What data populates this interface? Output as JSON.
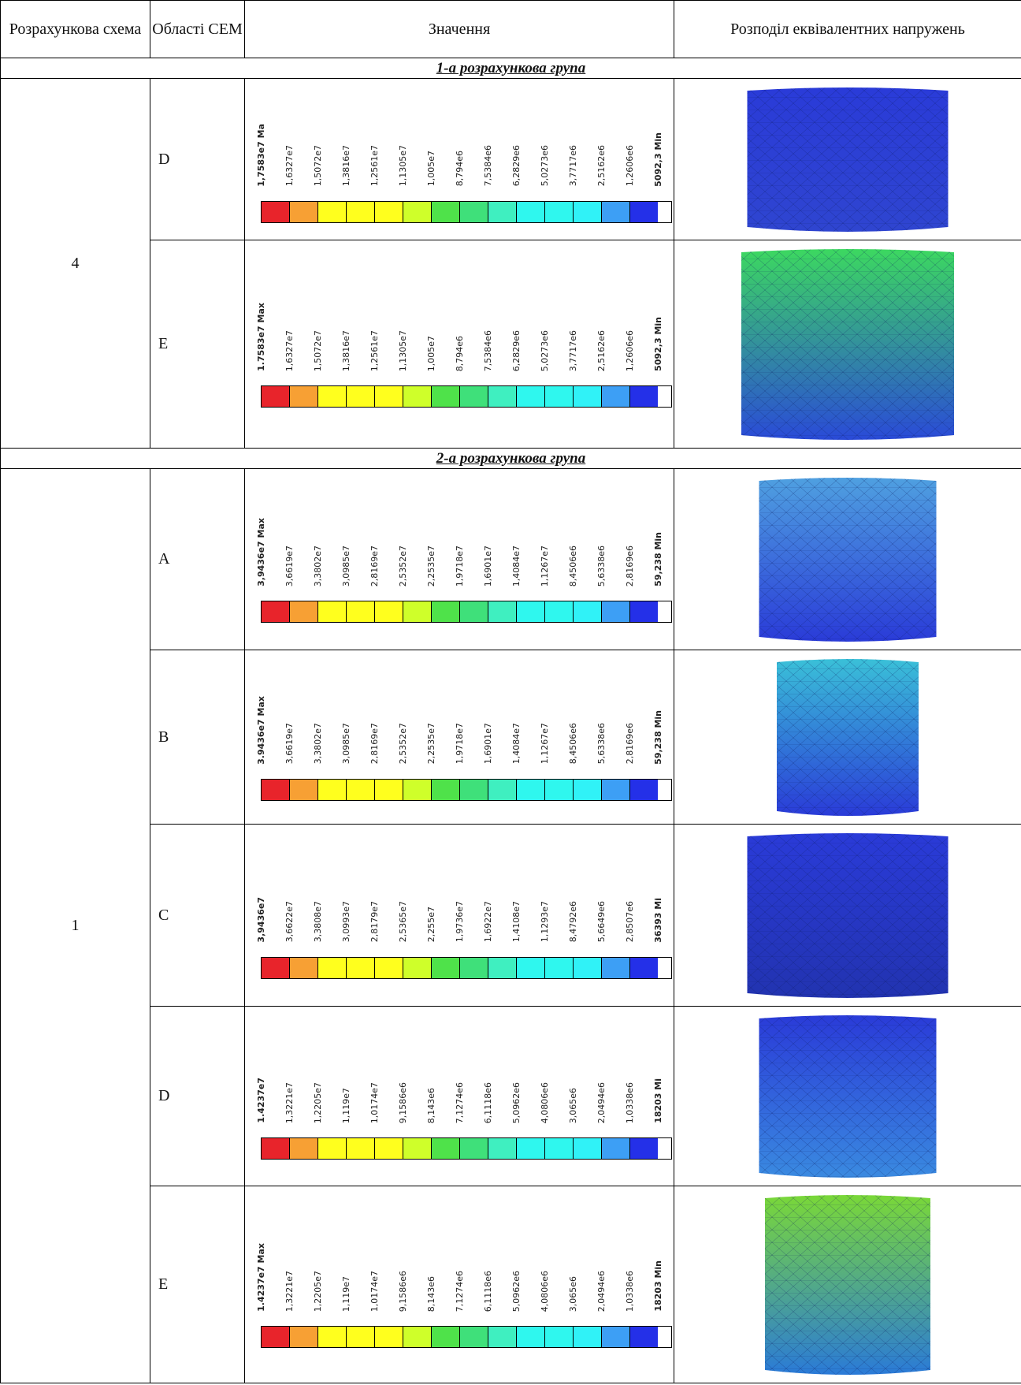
{
  "header": [
    "Розрахункова схема",
    "Області СЕМ",
    "Значення",
    "Розподіл еквівалентних напружень"
  ],
  "groups": [
    {
      "title": "1-а розрахункова група",
      "scheme": "4",
      "rows": [
        {
          "region": "D",
          "labels": [
            "1,7583e7 Ma",
            "1,6327e7",
            "1,5072e7",
            "1,3816e7",
            "1,2561e7",
            "1,1305e7",
            "1,005e7",
            "8,794e6",
            "7,5384e6",
            "6,2829e6",
            "5,0273e6",
            "3,7717e6",
            "2,5162e6",
            "1,2606e6",
            "5092,3 Min"
          ]
        },
        {
          "region": "E",
          "labels": [
            "1.7583e7 Max",
            "1,6327e7",
            "1,5072e7",
            "1,3816e7",
            "1,2561e7",
            "1,1305e7",
            "1,005e7",
            "8,794e6",
            "7,5384e6",
            "6,2829e6",
            "5,0273e6",
            "3,7717e6",
            "2,5162e6",
            "1,2606e6",
            "5092,3 Min"
          ]
        }
      ]
    },
    {
      "title": "2-а розрахункова група",
      "scheme": "1",
      "rows": [
        {
          "region": "A",
          "labels": [
            "3,9436e7 Max",
            "3,6619e7",
            "3,3802e7",
            "3,0985e7",
            "2,8169e7",
            "2,5352e7",
            "2,2535e7",
            "1,9718e7",
            "1,6901e7",
            "1,4084e7",
            "1,1267e7",
            "8,4506e6",
            "5,6338e6",
            "2,8169e6",
            "59,238 Min"
          ]
        },
        {
          "region": "B",
          "labels": [
            "3.9436e7 Max",
            "3,6619e7",
            "3,3802e7",
            "3,0985e7",
            "2,8169e7",
            "2,5352e7",
            "2,2535e7",
            "1,9718e7",
            "1,6901e7",
            "1,4084e7",
            "1,1267e7",
            "8,4506e6",
            "5,6338e6",
            "2,8169e6",
            "59,238 Min"
          ]
        },
        {
          "region": "C",
          "labels": [
            "3,9436e7",
            "3,6622e7",
            "3,3808e7",
            "3,0993e7",
            "2,8179e7",
            "2,5365e7",
            "2,255e7",
            "1,9736e7",
            "1,6922e7",
            "1,4108e7",
            "1,1293e7",
            "8,4792e6",
            "5,6649e6",
            "2,8507e6",
            "36393 Mi"
          ]
        },
        {
          "region": "D",
          "labels": [
            "1.4237e7",
            "1,3221e7",
            "1,2205e7",
            "1,119e7",
            "1,0174e7",
            "9,1586e6",
            "8,143e6",
            "7,1274e6",
            "6,1118e6",
            "5,0962e6",
            "4,0806e6",
            "3,065e6",
            "2,0494e6",
            "1,0338e6",
            "18203 Mi"
          ]
        },
        {
          "region": "E",
          "labels": [
            "1.4237e7 Max",
            "1,3221e7",
            "1,2205e7",
            "1,119e7",
            "1,0174e7",
            "9,1586e6",
            "8,143e6",
            "7,1274e6",
            "6,1118e6",
            "5,0962e6",
            "4,0806e6",
            "3,065e6",
            "2,0494e6",
            "1,0338e6",
            "18203 Min"
          ]
        }
      ]
    }
  ]
}
